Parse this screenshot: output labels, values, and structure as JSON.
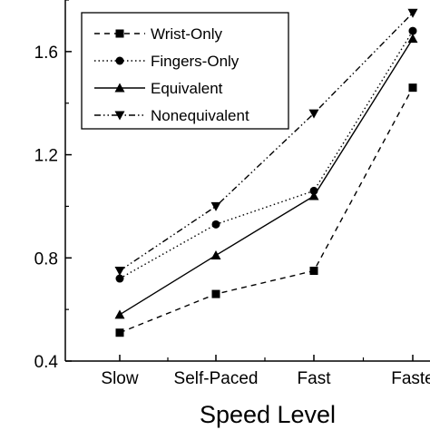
{
  "chart_data": {
    "type": "line",
    "title": "",
    "xlabel": "Speed Level",
    "ylabel": "",
    "categories": [
      "Slow",
      "Self-Paced",
      "Fast",
      "Faste"
    ],
    "ylim": [
      0.4,
      1.8
    ],
    "yticks": [
      0.4,
      0.8,
      1.2,
      1.6
    ],
    "ytick_labels": [
      "0.4",
      "0.8",
      "1.2",
      "1.6"
    ],
    "grid": false,
    "legend_position": "top-left",
    "series": [
      {
        "name": "Wrist-Only",
        "values": [
          0.51,
          0.66,
          0.75,
          1.46
        ],
        "marker": "square",
        "dash": "dashed",
        "color": "#000000"
      },
      {
        "name": "Fingers-Only",
        "values": [
          0.72,
          0.93,
          1.06,
          1.68
        ],
        "marker": "circle",
        "dash": "dotted",
        "color": "#000000"
      },
      {
        "name": "Equivalent",
        "values": [
          0.58,
          0.81,
          1.04,
          1.65
        ],
        "marker": "triangle-up",
        "dash": "solid",
        "color": "#000000"
      },
      {
        "name": "Nonequivalent",
        "values": [
          0.75,
          1.0,
          1.36,
          1.75
        ],
        "marker": "triangle-down",
        "dash": "dashdotdot",
        "color": "#000000"
      }
    ]
  }
}
